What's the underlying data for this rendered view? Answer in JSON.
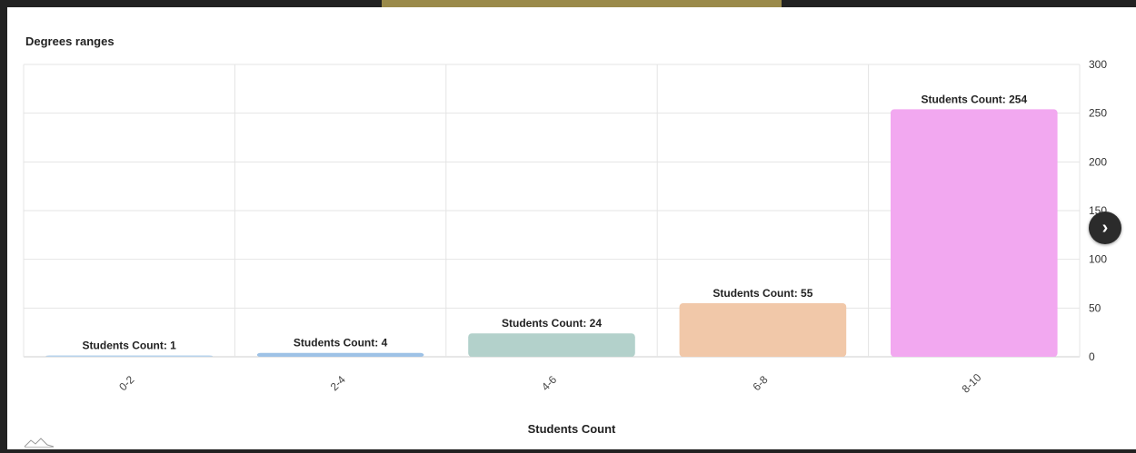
{
  "chart_data": {
    "type": "bar",
    "title": "Degrees ranges",
    "xlabel": "Students Count",
    "ylabel": "",
    "categories": [
      "0-2",
      "2-4",
      "4-6",
      "6-8",
      "8-10"
    ],
    "values": [
      1,
      4,
      24,
      55,
      254
    ],
    "bar_labels": [
      "Students Count: 1",
      "Students Count: 4",
      "Students Count: 24",
      "Students Count: 55",
      "Students Count: 254"
    ],
    "colors": [
      "#b7d3ec",
      "#9ec2e6",
      "#b3d1cb",
      "#f1c8a9",
      "#f2a8f0"
    ],
    "ylim": [
      0,
      300
    ],
    "yticks": [
      0,
      50,
      100,
      150,
      200,
      250,
      300
    ],
    "y_axis_position": "right",
    "grid": true,
    "legend": "none"
  },
  "controls": {
    "next_glyph": "›"
  }
}
